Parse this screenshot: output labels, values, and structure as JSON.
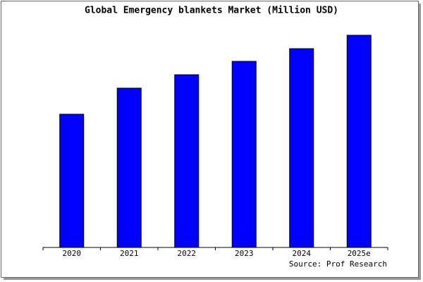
{
  "chart_data": {
    "type": "bar",
    "title": "Global Emergency blankets Market (Million USD)",
    "categories": [
      "2020",
      "2021",
      "2022",
      "2023",
      "2024",
      "2025e"
    ],
    "values": [
      189,
      226,
      245,
      264,
      282,
      301
    ],
    "color": "#0000ff",
    "ylim": [
      0,
      304
    ],
    "source": "Source: Prof Research"
  }
}
